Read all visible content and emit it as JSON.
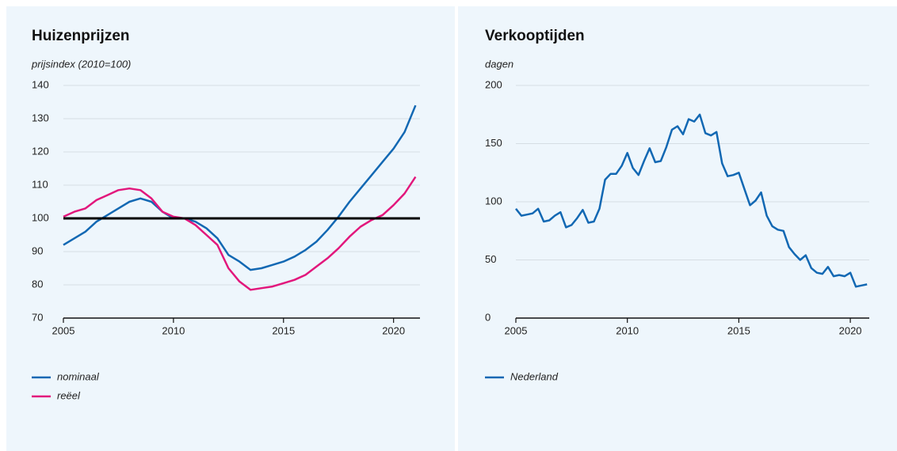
{
  "chart_data": [
    {
      "type": "line",
      "title": "Huizenprijzen",
      "subtitle": "prijsindex (2010=100)",
      "x": [
        2005.0,
        2005.5,
        2006.0,
        2006.5,
        2007.0,
        2007.5,
        2008.0,
        2008.5,
        2009.0,
        2009.5,
        2010.0,
        2010.5,
        2011.0,
        2011.5,
        2012.0,
        2012.5,
        2013.0,
        2013.5,
        2014.0,
        2014.5,
        2015.0,
        2015.5,
        2016.0,
        2016.5,
        2017.0,
        2017.5,
        2018.0,
        2018.5,
        2019.0,
        2019.5,
        2020.0,
        2020.5,
        2021.0
      ],
      "series": [
        {
          "name": "nominaal",
          "color": "#1268b3",
          "values": [
            92,
            94,
            96,
            99,
            101,
            103,
            105,
            106,
            105,
            102,
            100,
            100,
            99,
            97,
            94,
            89,
            87,
            84.5,
            85,
            86,
            87,
            88.5,
            90.5,
            93,
            96.5,
            100.5,
            105,
            109,
            113,
            117,
            121,
            126,
            134
          ]
        },
        {
          "name": "reëel",
          "color": "#e2177c",
          "values": [
            100.5,
            102,
            103,
            105.5,
            107,
            108.5,
            109,
            108.5,
            106,
            102,
            100.5,
            100,
            98,
            95,
            92,
            85,
            81,
            78.5,
            79,
            79.5,
            80.5,
            81.5,
            83,
            85.5,
            88,
            91,
            94.5,
            97.5,
            99.5,
            101,
            104,
            107.5,
            112.5
          ]
        }
      ],
      "reference_line": 100,
      "xlim": [
        2005,
        2021.2
      ],
      "xticks": [
        2005,
        2010,
        2015,
        2020
      ],
      "ylim": [
        70,
        140
      ],
      "yticks": [
        70,
        80,
        90,
        100,
        110,
        120,
        130,
        140
      ],
      "grid": true
    },
    {
      "type": "line",
      "title": "Verkooptijden",
      "subtitle": "dagen",
      "x": [
        2005.0,
        2005.25,
        2005.5,
        2005.75,
        2006.0,
        2006.25,
        2006.5,
        2006.75,
        2007.0,
        2007.25,
        2007.5,
        2007.75,
        2008.0,
        2008.25,
        2008.5,
        2008.75,
        2009.0,
        2009.25,
        2009.5,
        2009.75,
        2010.0,
        2010.25,
        2010.5,
        2010.75,
        2011.0,
        2011.25,
        2011.5,
        2011.75,
        2012.0,
        2012.25,
        2012.5,
        2012.75,
        2013.0,
        2013.25,
        2013.5,
        2013.75,
        2014.0,
        2014.25,
        2014.5,
        2014.75,
        2015.0,
        2015.25,
        2015.5,
        2015.75,
        2016.0,
        2016.25,
        2016.5,
        2016.75,
        2017.0,
        2017.25,
        2017.5,
        2017.75,
        2018.0,
        2018.25,
        2018.5,
        2018.75,
        2019.0,
        2019.25,
        2019.5,
        2019.75,
        2020.0,
        2020.25,
        2020.5,
        2020.75
      ],
      "series": [
        {
          "name": "Nederland",
          "color": "#1268b3",
          "values": [
            94,
            88,
            89,
            90,
            94,
            83,
            84,
            88,
            91,
            78,
            80,
            86,
            93,
            82,
            83,
            94,
            119,
            124,
            124,
            131,
            142,
            129,
            123,
            135,
            146,
            134,
            135,
            147,
            162,
            165,
            158,
            171,
            169,
            175,
            159,
            157,
            160,
            133,
            122,
            123,
            125,
            111,
            97,
            101,
            108,
            88,
            79,
            76,
            75,
            61,
            55,
            50,
            54,
            43,
            39,
            38,
            44,
            36,
            37,
            36,
            39,
            27,
            28,
            29
          ]
        }
      ],
      "xlim": [
        2005,
        2020.85
      ],
      "xticks": [
        2005,
        2010,
        2015,
        2020
      ],
      "ylim": [
        0,
        200
      ],
      "yticks": [
        0,
        50,
        100,
        150,
        200
      ],
      "grid": true
    }
  ]
}
